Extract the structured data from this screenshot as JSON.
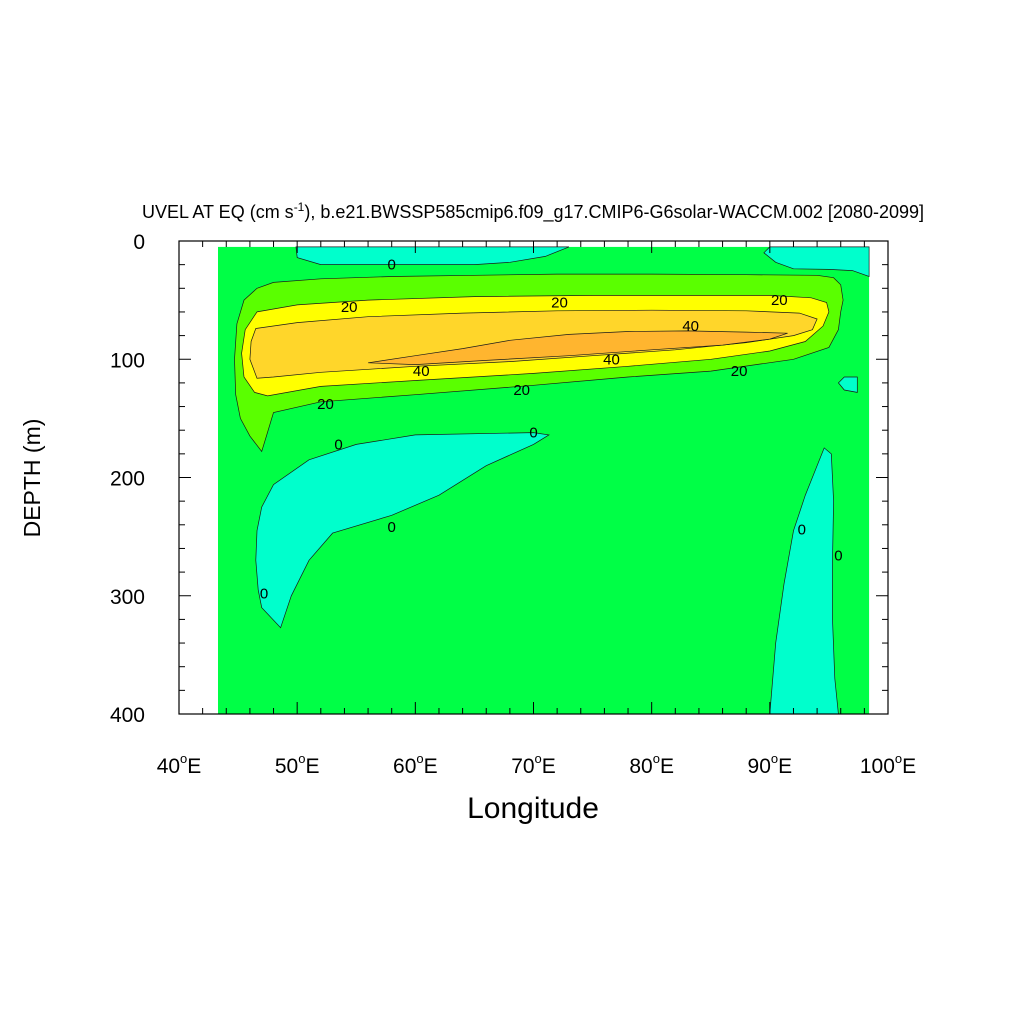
{
  "chart_data": {
    "type": "contour",
    "title": "UVEL AT EQ (cm s-1), b.e21.BWSSP585cmip6.f09_g17.CMIP6-G6solar-WACCM.002 [2080-2099]",
    "title_parts": {
      "prefix": "UVEL AT EQ (cm s",
      "sup": "-1",
      "suffix": "), b.e21.BWSSP585cmip6.f09_g17.CMIP6-G6solar-WACCM.002 [2080-2099]"
    },
    "xlabel": "Longitude",
    "ylabel": "DEPTH (m)",
    "xlim": [
      40,
      100
    ],
    "ylim": [
      400,
      0
    ],
    "x_ticks": [
      {
        "value": 40,
        "num": "40",
        "deg": "o",
        "hemi": "E"
      },
      {
        "value": 50,
        "num": "50",
        "deg": "o",
        "hemi": "E"
      },
      {
        "value": 60,
        "num": "60",
        "deg": "o",
        "hemi": "E"
      },
      {
        "value": 70,
        "num": "70",
        "deg": "o",
        "hemi": "E"
      },
      {
        "value": 80,
        "num": "80",
        "deg": "o",
        "hemi": "E"
      },
      {
        "value": 90,
        "num": "90",
        "deg": "o",
        "hemi": "E"
      },
      {
        "value": 100,
        "num": "100",
        "deg": "o",
        "hemi": "E"
      }
    ],
    "y_ticks": [
      {
        "value": 0,
        "label": "0"
      },
      {
        "value": 100,
        "label": "100"
      },
      {
        "value": 200,
        "label": "200"
      },
      {
        "value": 300,
        "label": "300"
      },
      {
        "value": 400,
        "label": "400"
      }
    ],
    "contour_levels": [
      0,
      10,
      20,
      30,
      40
    ],
    "fill_colors": {
      "below_0": "#00ffcc",
      "0_to_10": "#00ff46",
      "10_to_20": "#5aff00",
      "20_to_30": "#ffff00",
      "30_to_40": "#ffd62a",
      "above_40": "#ffb52f"
    },
    "data_domain": {
      "x": [
        43.3,
        98.4
      ],
      "y": [
        5,
        400
      ]
    },
    "regions": [
      {
        "name": "positive-jet-10",
        "level": "10_to_20",
        "points": [
          [
            46.6,
            40
          ],
          [
            48,
            35
          ],
          [
            52,
            32
          ],
          [
            58,
            30
          ],
          [
            65,
            29
          ],
          [
            72,
            28
          ],
          [
            80,
            28
          ],
          [
            88,
            28.5
          ],
          [
            94,
            29
          ],
          [
            95.4,
            31
          ],
          [
            96,
            37
          ],
          [
            96.2,
            50
          ],
          [
            96,
            60
          ],
          [
            95.8,
            75
          ],
          [
            95,
            90
          ],
          [
            92,
            100
          ],
          [
            85,
            110
          ],
          [
            78,
            115
          ],
          [
            70,
            122
          ],
          [
            60,
            130
          ],
          [
            52,
            136
          ],
          [
            48,
            145
          ],
          [
            47.4,
            165
          ],
          [
            47,
            178
          ],
          [
            46,
            165
          ],
          [
            45.2,
            150
          ],
          [
            44.8,
            130
          ],
          [
            44.7,
            100
          ],
          [
            44.9,
            70
          ],
          [
            45.5,
            50
          ]
        ]
      },
      {
        "name": "positive-jet-20",
        "level": "20_to_30",
        "points": [
          [
            46.6,
            60
          ],
          [
            50,
            54
          ],
          [
            56,
            50
          ],
          [
            65,
            47
          ],
          [
            75,
            46
          ],
          [
            84,
            46
          ],
          [
            90,
            46
          ],
          [
            93.5,
            48
          ],
          [
            94.8,
            52
          ],
          [
            95,
            60
          ],
          [
            94.5,
            72
          ],
          [
            93,
            85
          ],
          [
            90,
            93
          ],
          [
            85,
            100
          ],
          [
            78,
            106
          ],
          [
            70,
            112
          ],
          [
            60,
            118
          ],
          [
            52,
            123
          ],
          [
            47.5,
            131
          ],
          [
            46.4,
            128
          ],
          [
            45.5,
            115
          ],
          [
            45.3,
            95
          ],
          [
            45.6,
            75
          ]
        ]
      },
      {
        "name": "positive-jet-30",
        "level": "30_to_40",
        "points": [
          [
            46.5,
            74
          ],
          [
            50,
            69
          ],
          [
            56,
            64
          ],
          [
            64,
            61
          ],
          [
            72,
            59
          ],
          [
            80,
            58.5
          ],
          [
            88,
            59
          ],
          [
            92.5,
            61
          ],
          [
            94,
            66
          ],
          [
            93.6,
            75
          ],
          [
            92,
            80
          ],
          [
            88,
            86
          ],
          [
            82,
            92
          ],
          [
            75,
            97
          ],
          [
            68,
            102
          ],
          [
            60,
            106
          ],
          [
            52,
            111
          ],
          [
            48,
            115
          ],
          [
            46.6,
            116
          ],
          [
            46,
            100
          ],
          [
            46.1,
            85
          ]
        ]
      },
      {
        "name": "positive-jet-40",
        "level": "above_40",
        "points": [
          [
            56,
            103
          ],
          [
            60,
            97
          ],
          [
            64,
            91
          ],
          [
            68,
            84
          ],
          [
            73,
            79
          ],
          [
            78,
            76.5
          ],
          [
            83,
            76
          ],
          [
            88,
            77
          ],
          [
            91.5,
            78
          ],
          [
            90,
            83
          ],
          [
            86,
            88
          ],
          [
            80,
            92
          ],
          [
            73,
            97
          ],
          [
            66,
            101
          ],
          [
            60,
            104.5
          ]
        ]
      },
      {
        "name": "negative-top",
        "level": "below_0",
        "points": [
          [
            49.9,
            5
          ],
          [
            73,
            5
          ],
          [
            71,
            13
          ],
          [
            68,
            18
          ],
          [
            65,
            20
          ],
          [
            58,
            20
          ],
          [
            52,
            20
          ],
          [
            50,
            14
          ]
        ]
      },
      {
        "name": "negative-top-right",
        "level": "below_0",
        "points": [
          [
            90,
            5
          ],
          [
            98.4,
            5
          ],
          [
            98.4,
            30
          ],
          [
            97,
            25
          ],
          [
            95,
            24
          ],
          [
            92,
            23.5
          ],
          [
            90.5,
            18
          ],
          [
            89.5,
            10
          ]
        ]
      },
      {
        "name": "negative-right-edge",
        "level": "below_0",
        "points": [
          [
            96.3,
            115
          ],
          [
            97.4,
            115
          ],
          [
            97.4,
            128
          ],
          [
            96.3,
            126
          ],
          [
            95.8,
            120
          ]
        ]
      },
      {
        "name": "negative-mid-left",
        "level": "below_0",
        "points": [
          [
            60,
            164
          ],
          [
            70,
            162
          ],
          [
            71.3,
            164
          ],
          [
            70,
            172
          ],
          [
            66,
            190
          ],
          [
            62,
            215
          ],
          [
            58,
            232
          ],
          [
            53,
            247
          ],
          [
            51,
            270
          ],
          [
            49.5,
            300
          ],
          [
            48.6,
            327
          ],
          [
            47,
            310
          ],
          [
            46.7,
            295
          ],
          [
            46.5,
            270
          ],
          [
            46.6,
            245
          ],
          [
            47,
            225
          ],
          [
            48,
            206
          ],
          [
            51,
            185
          ],
          [
            55,
            172
          ]
        ]
      },
      {
        "name": "negative-deep-right",
        "level": "below_0",
        "points": [
          [
            90,
            400
          ],
          [
            90.5,
            340
          ],
          [
            91.2,
            290
          ],
          [
            92,
            245
          ],
          [
            93,
            215
          ],
          [
            94.6,
            175
          ],
          [
            95.2,
            180
          ],
          [
            95.4,
            220
          ],
          [
            95.3,
            270
          ],
          [
            95.3,
            320
          ],
          [
            95.5,
            370
          ],
          [
            95.8,
            400
          ]
        ]
      }
    ],
    "contour_labels": [
      {
        "text": "0",
        "x": 58,
        "y": 20
      },
      {
        "text": "0",
        "x": 53.5,
        "y": 172
      },
      {
        "text": "0",
        "x": 70,
        "y": 162
      },
      {
        "text": "0",
        "x": 58,
        "y": 242
      },
      {
        "text": "0",
        "x": 47.2,
        "y": 298
      },
      {
        "text": "0",
        "x": 92.7,
        "y": 244
      },
      {
        "text": "0",
        "x": 95.8,
        "y": 266
      },
      {
        "text": "20",
        "x": 54.4,
        "y": 56
      },
      {
        "text": "20",
        "x": 72.2,
        "y": 52
      },
      {
        "text": "20",
        "x": 90.8,
        "y": 50
      },
      {
        "text": "20",
        "x": 52.4,
        "y": 138
      },
      {
        "text": "20",
        "x": 69,
        "y": 126
      },
      {
        "text": "20",
        "x": 87.4,
        "y": 110
      },
      {
        "text": "40",
        "x": 83.3,
        "y": 72
      },
      {
        "text": "40",
        "x": 76.6,
        "y": 100
      },
      {
        "text": "40",
        "x": 60.5,
        "y": 110
      }
    ]
  }
}
